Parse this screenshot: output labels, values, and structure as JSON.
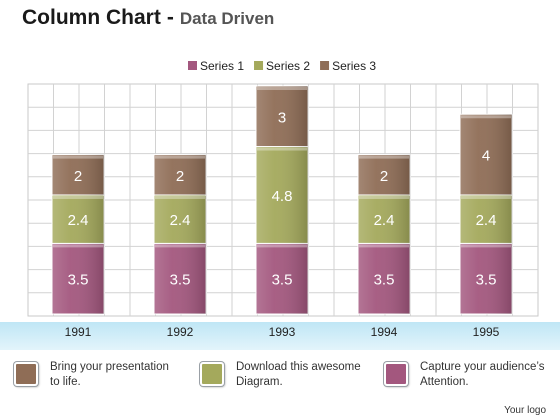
{
  "header": {
    "title": "Column Chart",
    "separator": "-",
    "subtitle": "Data Driven"
  },
  "colors": {
    "series1": "#a3577e",
    "series2": "#a4a95c",
    "series3": "#8f6d56"
  },
  "chart_data": {
    "type": "bar",
    "stacked": true,
    "categories": [
      "1991",
      "1992",
      "1993",
      "1994",
      "1995"
    ],
    "series": [
      {
        "name": "Series 1",
        "values": [
          3.5,
          3.5,
          3.5,
          3.5,
          3.5
        ]
      },
      {
        "name": "Series 2",
        "values": [
          2.4,
          2.4,
          4.8,
          2.4,
          2.4
        ]
      },
      {
        "name": "Series 3",
        "values": [
          2,
          2,
          3,
          2,
          4
        ]
      }
    ],
    "legend_position": "top",
    "grid": true
  },
  "footer": {
    "items": [
      {
        "text": "Bring your presentation to life.",
        "color": "#8f6d56"
      },
      {
        "text": "Download this awesome Diagram.",
        "color": "#a4a95c"
      },
      {
        "text": "Capture your audience’s Attention.",
        "color": "#a3577e"
      }
    ],
    "logo": "Your logo"
  }
}
